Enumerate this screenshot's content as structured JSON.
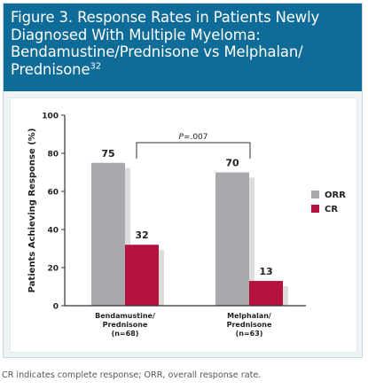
{
  "figure": {
    "title_main": "Figure 3. Response Rates in Patients Newly Diagnosed With Multiple Myeloma: Bendamustine/Prednisone vs Melphalan/ Prednisone",
    "title_ref": "32",
    "footnote": "CR indicates complete response; ORR, overall response rate."
  },
  "chart_data": {
    "type": "bar",
    "title": "",
    "xlabel": "",
    "ylabel": "Patients Achieving Response (%)",
    "ylim": [
      0,
      100
    ],
    "yticks": [
      "0",
      "20",
      "40",
      "60",
      "80",
      "100"
    ],
    "grid": false,
    "legend_position": "right",
    "categories": [
      {
        "lines": [
          "Bendamustine/",
          "Prednisone",
          "(n=68)"
        ]
      },
      {
        "lines": [
          "Melphalan/",
          "Prednisone",
          "(n=63)"
        ]
      }
    ],
    "series": [
      {
        "name": "ORR",
        "color": "#a7a9ac",
        "values": [
          75,
          70
        ],
        "labels": [
          "75",
          "70"
        ]
      },
      {
        "name": "CR",
        "color": "#b5123f",
        "values": [
          32,
          13
        ],
        "labels": [
          "32",
          "13"
        ]
      }
    ],
    "annotation": {
      "prefix": "P",
      "text": "=.007"
    }
  }
}
